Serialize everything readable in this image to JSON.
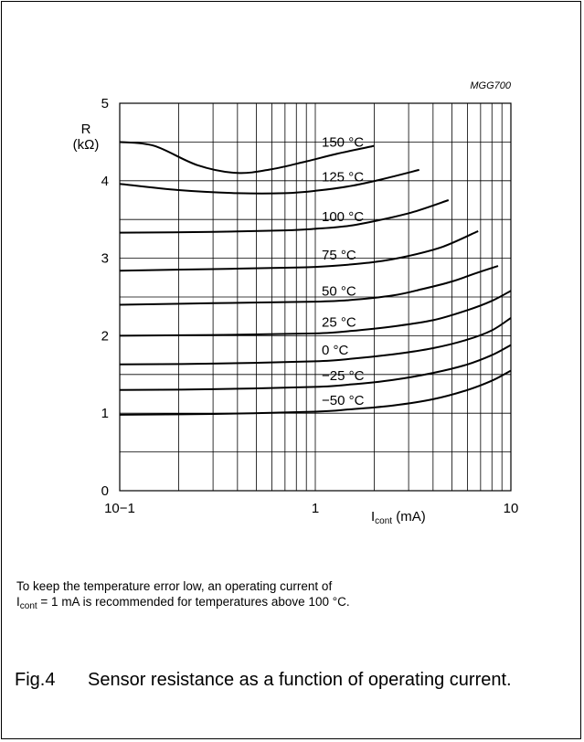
{
  "chart_data": {
    "type": "line",
    "code": "MGG700",
    "ylabel_line1": "R",
    "ylabel_line2": "(kΩ)",
    "xlabel_main": "I",
    "xlabel_sub": "cont",
    "xlabel_unit": " (mA)",
    "x_scale": "log",
    "xlim": [
      0.1,
      10
    ],
    "ylim": [
      0,
      5
    ],
    "grid": true,
    "x_ticks": [
      {
        "value": 0.1,
        "label": "10−1"
      },
      {
        "value": 1,
        "label": "1"
      },
      {
        "value": 10,
        "label": "10"
      }
    ],
    "y_ticks": [
      {
        "value": 0,
        "label": "0"
      },
      {
        "value": 1,
        "label": "1"
      },
      {
        "value": 2,
        "label": "2"
      },
      {
        "value": 3,
        "label": "3"
      },
      {
        "value": 4,
        "label": "4"
      },
      {
        "value": 5,
        "label": "5"
      }
    ],
    "series": [
      {
        "name": "150 °C",
        "x": [
          0.1,
          0.15,
          0.25,
          0.4,
          0.6,
          0.9,
          1.3,
          2.0
        ],
        "y": [
          4.5,
          4.45,
          4.2,
          4.1,
          4.15,
          4.25,
          4.35,
          4.45
        ]
      },
      {
        "name": "125 °C",
        "x": [
          0.1,
          0.2,
          0.4,
          0.7,
          1.0,
          1.5,
          2.2,
          3.4
        ],
        "y": [
          3.96,
          3.88,
          3.84,
          3.84,
          3.87,
          3.93,
          4.02,
          4.14
        ]
      },
      {
        "name": "100 °C",
        "x": [
          0.1,
          0.3,
          0.7,
          1.0,
          1.5,
          2.2,
          3.2,
          4.8
        ],
        "y": [
          3.33,
          3.34,
          3.36,
          3.38,
          3.42,
          3.5,
          3.6,
          3.75
        ]
      },
      {
        "name": "75 °C",
        "x": [
          0.1,
          0.3,
          0.8,
          1.2,
          2.0,
          3.0,
          4.5,
          6.8
        ],
        "y": [
          2.84,
          2.86,
          2.88,
          2.9,
          2.95,
          3.03,
          3.15,
          3.35
        ]
      },
      {
        "name": "50 °C",
        "x": [
          0.1,
          0.3,
          1.0,
          1.5,
          2.5,
          3.5,
          5.0,
          6.5,
          8.6
        ],
        "y": [
          2.4,
          2.42,
          2.44,
          2.46,
          2.52,
          2.6,
          2.7,
          2.8,
          2.9
        ]
      },
      {
        "name": "25 °C",
        "x": [
          0.1,
          0.3,
          1.0,
          1.5,
          2.5,
          4.0,
          6.0,
          8.0,
          10.0
        ],
        "y": [
          2.0,
          2.01,
          2.03,
          2.06,
          2.12,
          2.2,
          2.33,
          2.45,
          2.58
        ]
      },
      {
        "name": "0 °C",
        "x": [
          0.1,
          0.3,
          1.0,
          1.5,
          2.5,
          4.0,
          6.0,
          8.0,
          10.0
        ],
        "y": [
          1.63,
          1.64,
          1.67,
          1.7,
          1.76,
          1.84,
          1.95,
          2.07,
          2.23
        ]
      },
      {
        "name": "−25 °C",
        "x": [
          0.1,
          0.3,
          1.0,
          1.5,
          2.5,
          4.0,
          6.0,
          8.0,
          10.0
        ],
        "y": [
          1.3,
          1.31,
          1.34,
          1.37,
          1.43,
          1.52,
          1.63,
          1.75,
          1.88
        ]
      },
      {
        "name": "−50 °C",
        "x": [
          0.1,
          0.3,
          1.0,
          1.5,
          2.5,
          4.0,
          6.0,
          8.0,
          10.0
        ],
        "y": [
          0.98,
          0.99,
          1.02,
          1.05,
          1.1,
          1.18,
          1.3,
          1.42,
          1.55
        ]
      }
    ]
  },
  "note": {
    "line1": "To keep the temperature error low, an operating current of",
    "line2_main": "I",
    "line2_sub": "cont",
    "line2_rest": " = 1 mA is recommended for temperatures above 100 °C."
  },
  "caption": {
    "number": "Fig.4",
    "text": "Sensor resistance as a function of operating current."
  }
}
